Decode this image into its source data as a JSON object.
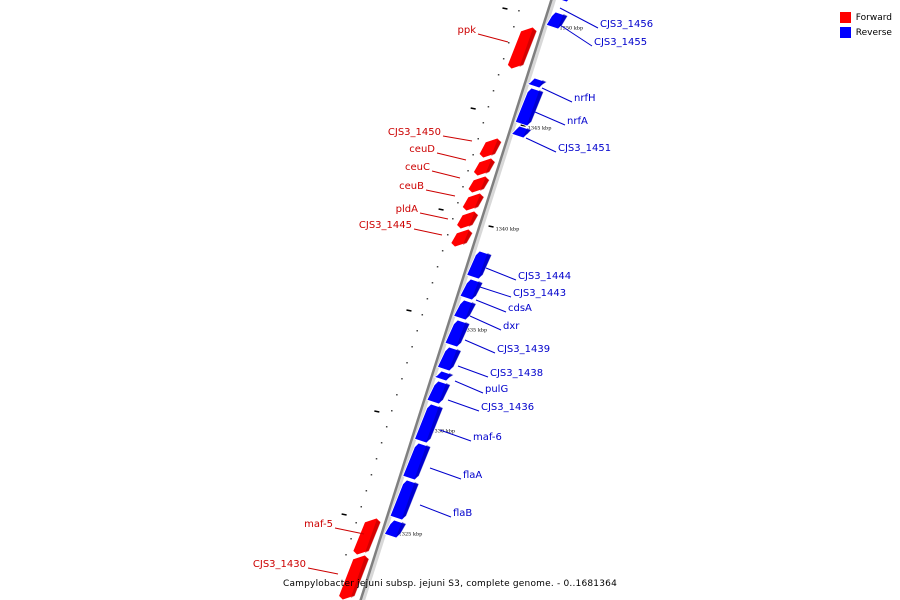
{
  "legend": [
    {
      "label": "Forward",
      "color": "#ff0000"
    },
    {
      "label": "Reverse",
      "color": "#0000ff"
    }
  ],
  "caption": "Campylobacter jejuni subsp. jejuni S3, complete genome. - 0..1681364",
  "ticks": [
    "1350 kbp",
    "1345 kbp",
    "1340 kbp",
    "1335 kbp",
    "1330 kbp",
    "1325 kbp"
  ],
  "colors": {
    "forward": "#ff0000",
    "reverse": "#0000ff",
    "backbone": "#808080",
    "forward_label": "#cc0000",
    "reverse_label": "#0000cc"
  },
  "genes": [
    {
      "name": "CJS3_1456",
      "strand": "reverse"
    },
    {
      "name": "CJS3_1455",
      "strand": "reverse"
    },
    {
      "name": "ppk",
      "strand": "forward"
    },
    {
      "name": "nrfH",
      "strand": "reverse"
    },
    {
      "name": "nrfA",
      "strand": "reverse"
    },
    {
      "name": "CJS3_1451",
      "strand": "reverse"
    },
    {
      "name": "CJS3_1450",
      "strand": "forward"
    },
    {
      "name": "ceuD",
      "strand": "forward"
    },
    {
      "name": "ceuC",
      "strand": "forward"
    },
    {
      "name": "ceuB",
      "strand": "forward"
    },
    {
      "name": "pldA",
      "strand": "forward"
    },
    {
      "name": "CJS3_1445",
      "strand": "forward"
    },
    {
      "name": "CJS3_1444",
      "strand": "reverse"
    },
    {
      "name": "CJS3_1443",
      "strand": "reverse"
    },
    {
      "name": "cdsA",
      "strand": "reverse"
    },
    {
      "name": "dxr",
      "strand": "reverse"
    },
    {
      "name": "CJS3_1439",
      "strand": "reverse"
    },
    {
      "name": "CJS3_1438",
      "strand": "reverse"
    },
    {
      "name": "pulG",
      "strand": "reverse"
    },
    {
      "name": "CJS3_1436",
      "strand": "reverse"
    },
    {
      "name": "maf-6",
      "strand": "reverse"
    },
    {
      "name": "flaA",
      "strand": "reverse"
    },
    {
      "name": "flaB",
      "strand": "reverse"
    },
    {
      "name": "maf-5",
      "strand": "forward"
    },
    {
      "name": "CJS3_1430",
      "strand": "forward"
    }
  ]
}
